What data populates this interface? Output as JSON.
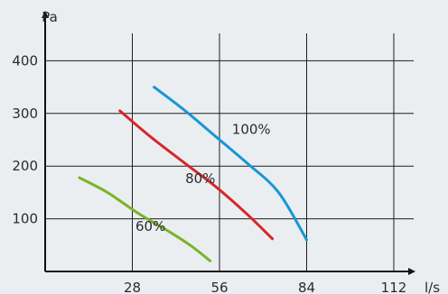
{
  "chart_data": {
    "type": "line",
    "xlabel": "l/s",
    "ylabel": "Pa",
    "xlim": [
      0,
      112
    ],
    "ylim": [
      0,
      410
    ],
    "xticks": [
      28,
      56,
      84,
      112
    ],
    "yticks": [
      100,
      200,
      300,
      400
    ],
    "grid": true,
    "series": [
      {
        "name": "60%",
        "color": "#79b429",
        "points": [
          [
            11,
            178
          ],
          [
            20,
            150
          ],
          [
            30,
            110
          ],
          [
            40,
            75
          ],
          [
            47,
            48
          ],
          [
            53,
            20
          ]
        ]
      },
      {
        "name": "80%",
        "color": "#d8262c",
        "points": [
          [
            24,
            305
          ],
          [
            34,
            255
          ],
          [
            45,
            205
          ],
          [
            55,
            160
          ],
          [
            65,
            108
          ],
          [
            73,
            62
          ]
        ]
      },
      {
        "name": "100%",
        "color": "#1896d6",
        "points": [
          [
            35,
            350
          ],
          [
            45,
            305
          ],
          [
            55,
            255
          ],
          [
            65,
            205
          ],
          [
            75,
            150
          ],
          [
            84,
            60
          ]
        ]
      }
    ],
    "labels": [
      {
        "text": "60%",
        "x": 29,
        "y": 77
      },
      {
        "text": "80%",
        "x": 45,
        "y": 168
      },
      {
        "text": "100%",
        "x": 60,
        "y": 261
      }
    ]
  }
}
